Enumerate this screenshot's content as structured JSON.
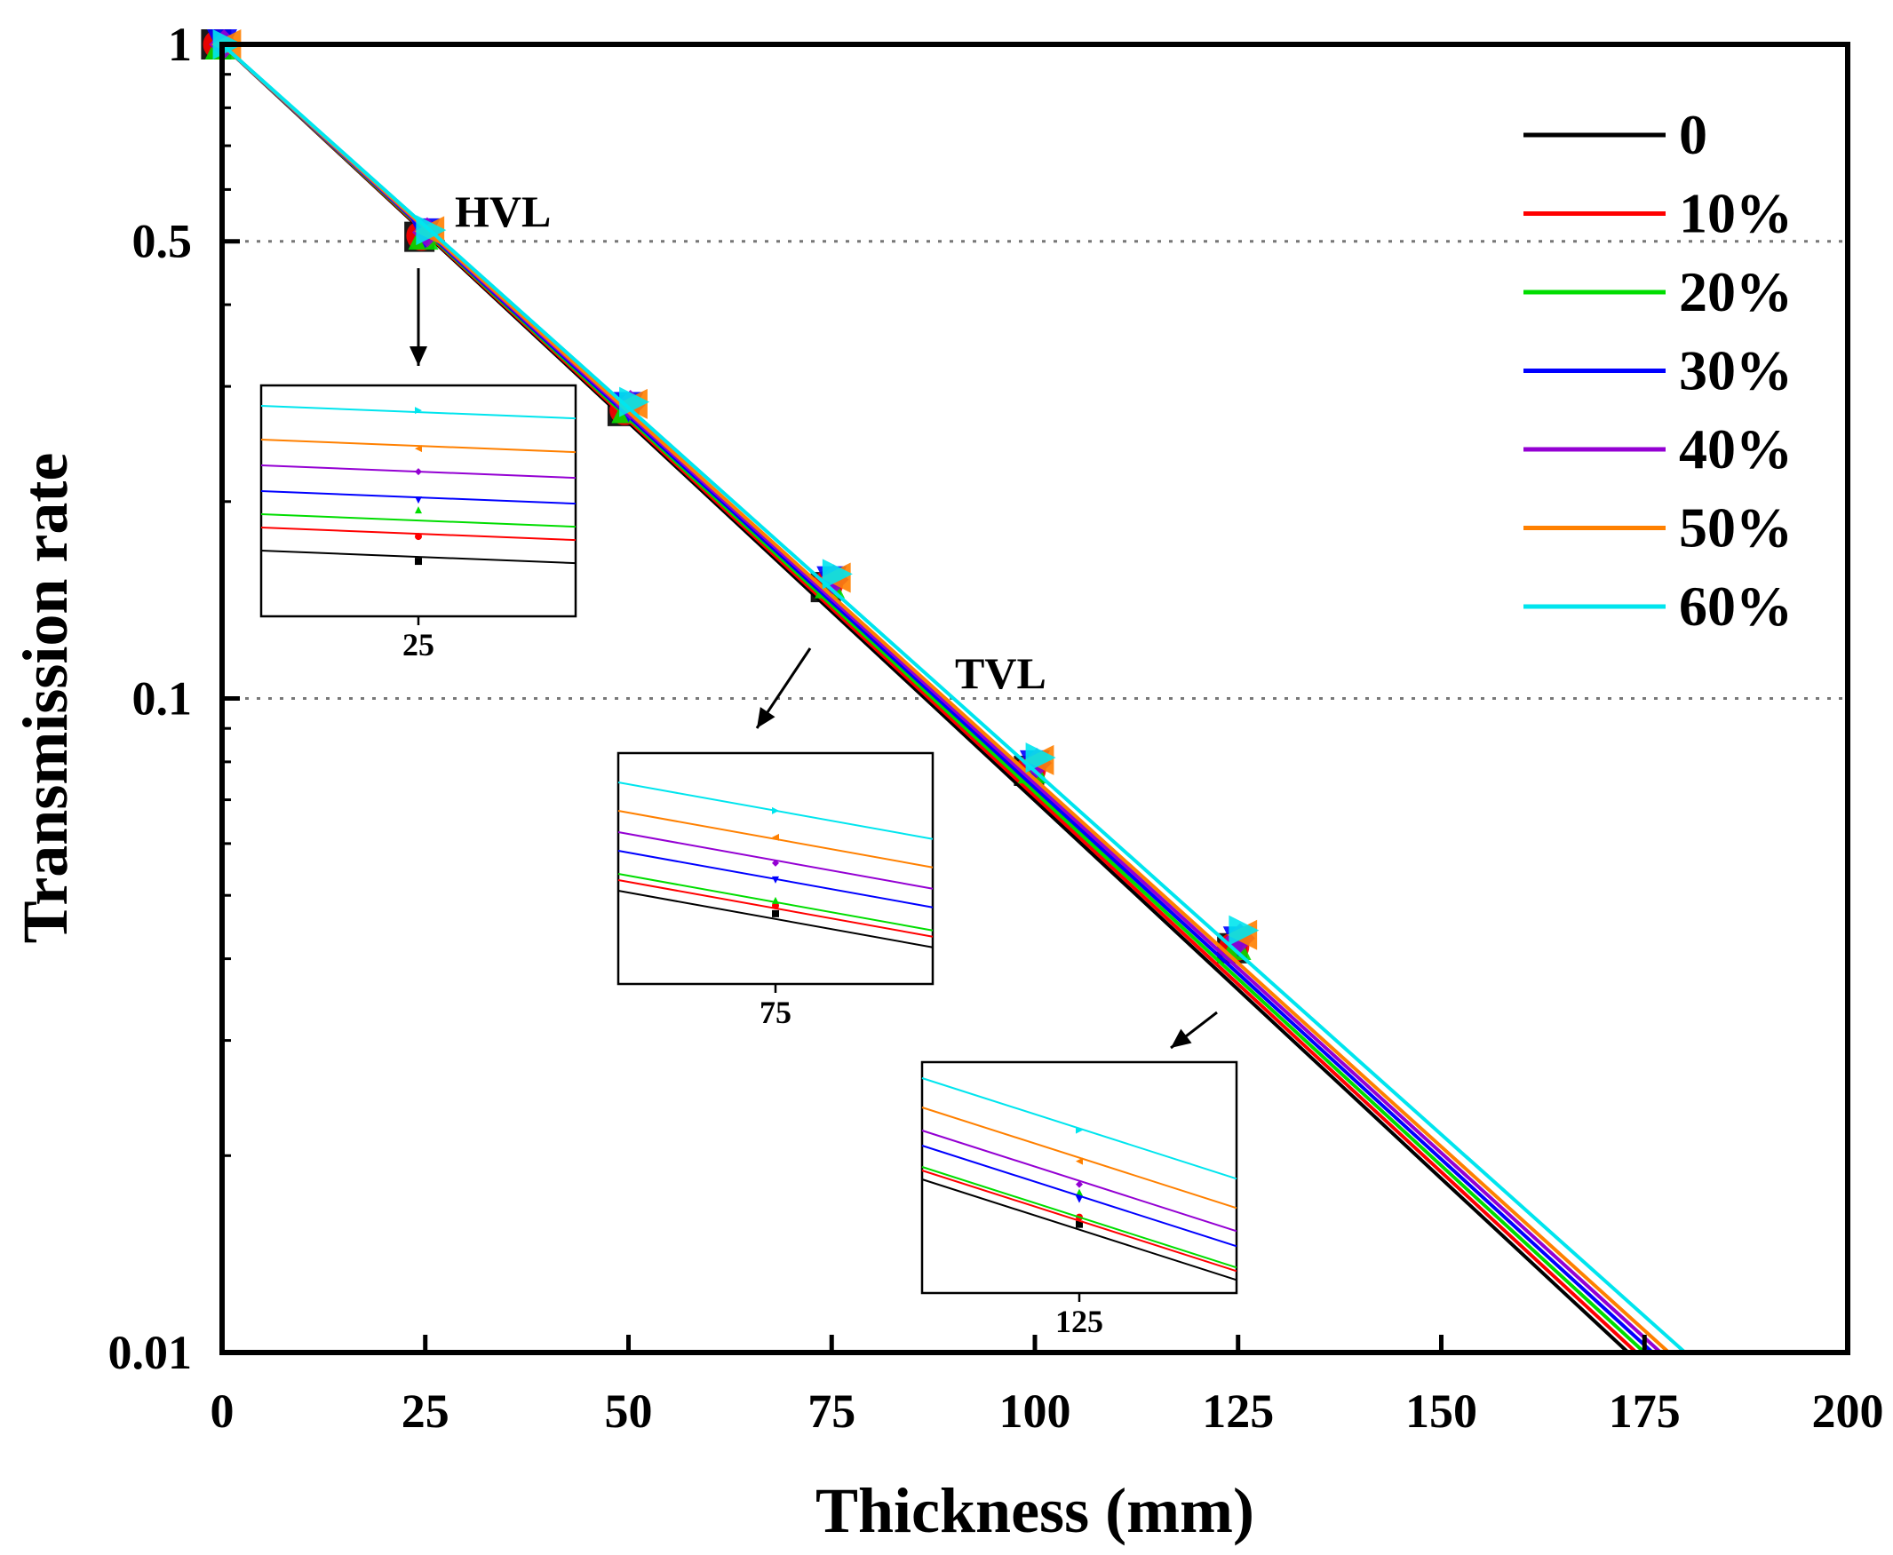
{
  "chart_data": {
    "type": "line",
    "title": "",
    "xlabel": "Thickness (mm)",
    "ylabel": "Transmission rate",
    "xscale": "linear",
    "yscale": "log",
    "xlim": [
      0,
      200
    ],
    "ylim": [
      0.01,
      1
    ],
    "x_ticks": [
      0,
      25,
      50,
      75,
      100,
      125,
      150,
      175,
      200
    ],
    "x_tick_labels": [
      "0",
      "25",
      "50",
      "75",
      "100",
      "125",
      "150",
      "175",
      "200"
    ],
    "y_ticks": [
      0.01,
      0.1,
      0.5,
      1
    ],
    "y_tick_labels": [
      "0.01",
      "0.1",
      "0.5",
      "1"
    ],
    "legend_position": "top-right",
    "reference_lines": [
      {
        "y": 0.5,
        "label": "HVL",
        "style": "dotted"
      },
      {
        "y": 0.1,
        "label": "TVL",
        "style": "dotted"
      }
    ],
    "series": [
      {
        "name": "0",
        "color": "#000000",
        "marker": "square",
        "x": [
          0,
          25,
          50,
          75,
          100,
          125
        ],
        "values": [
          1,
          0.508,
          0.275,
          0.148,
          0.0775,
          0.0415
        ],
        "fit_end": [
          173.0,
          0.01
        ]
      },
      {
        "name": "10%",
        "color": "#ff0000",
        "marker": "circle",
        "x": [
          0,
          25,
          50,
          75,
          100,
          125
        ],
        "values": [
          1,
          0.51,
          0.276,
          0.149,
          0.0778,
          0.0417
        ],
        "fit_end": [
          174.0,
          0.01
        ]
      },
      {
        "name": "20%",
        "color": "#00dd00",
        "marker": "triangle-up",
        "x": [
          0,
          25,
          50,
          75,
          100,
          125
        ],
        "values": [
          1,
          0.512,
          0.278,
          0.15,
          0.0782,
          0.042
        ],
        "fit_end": [
          175.0,
          0.01
        ]
      },
      {
        "name": "30%",
        "color": "#0000ff",
        "marker": "triangle-down",
        "x": [
          0,
          25,
          50,
          75,
          100,
          125
        ],
        "values": [
          1,
          0.514,
          0.279,
          0.151,
          0.079,
          0.0425
        ],
        "fit_end": [
          176.0,
          0.01
        ]
      },
      {
        "name": "40%",
        "color": "#9400d3",
        "marker": "diamond",
        "x": [
          0,
          25,
          50,
          75,
          100,
          125
        ],
        "values": [
          1,
          0.516,
          0.281,
          0.152,
          0.0797,
          0.043
        ],
        "fit_end": [
          177.0,
          0.01
        ]
      },
      {
        "name": "50%",
        "color": "#ff8000",
        "marker": "triangle-left",
        "x": [
          0,
          25,
          50,
          75,
          100,
          125
        ],
        "values": [
          1,
          0.518,
          0.282,
          0.153,
          0.0805,
          0.0435
        ],
        "fit_end": [
          178.0,
          0.01
        ]
      },
      {
        "name": "60%",
        "color": "#00e5ee",
        "marker": "triangle-right",
        "x": [
          0,
          25,
          50,
          75,
          100,
          125
        ],
        "values": [
          1,
          0.52,
          0.284,
          0.155,
          0.0812,
          0.0442
        ],
        "fit_end": [
          180.0,
          0.01
        ]
      }
    ],
    "insets": [
      {
        "center_x": 25,
        "tick_label": "25"
      },
      {
        "center_x": 75,
        "tick_label": "75"
      },
      {
        "center_x": 125,
        "tick_label": "125"
      }
    ],
    "annotations": [
      "HVL",
      "TVL"
    ]
  }
}
